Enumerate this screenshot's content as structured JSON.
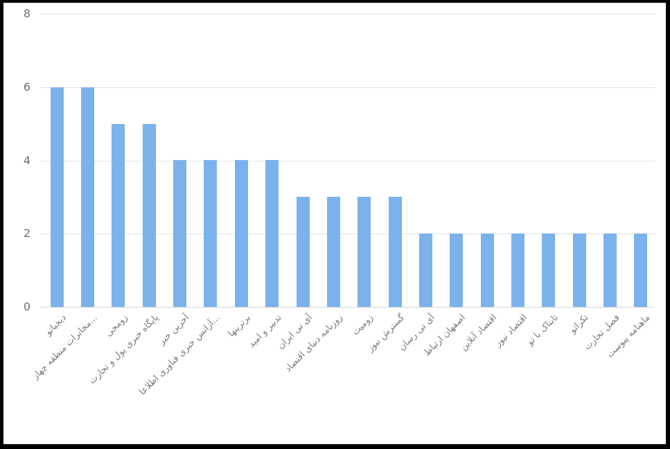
{
  "chart_data": {
    "type": "bar",
    "title": "",
    "xlabel": "",
    "ylabel": "",
    "categories": [
      "دیجیاتو",
      "...مخابرات منطقه چهار",
      "زومجی",
      "پایگاه خبری پول و تجارت",
      "آخرین خبر",
      "...آژانس خبری فناوری اطلاعا",
      "برترینها",
      "تدبیر و امید",
      "آی تی ایران",
      "روزنامه دنیای اقتصاد",
      "زومیت",
      "گسترش نیوز",
      "آی تی رسان",
      "اصفهان ارتباط",
      "اقتصاد آنلاین",
      "اقتصاد نیوز",
      "تابناک با تو",
      "تکراتو",
      "فصل تجارت",
      "ماهنامه پیوست"
    ],
    "values": [
      6,
      6,
      5,
      5,
      4,
      4,
      4,
      4,
      3,
      3,
      3,
      3,
      2,
      2,
      2,
      2,
      2,
      2,
      2,
      2
    ],
    "ylim": [
      0,
      8
    ],
    "yticks": [
      "0",
      "2",
      "4",
      "6",
      "8"
    ],
    "grid": true,
    "legend": false,
    "rtl": true,
    "colors": {
      "bar": "#7cb2eb",
      "gridline": "#e2e2e2",
      "axis_line": "#d6d6d6",
      "y_tick_label": "#6e6e6e",
      "x_tick_label": "#7a7a7a",
      "background": "#ffffff",
      "frame": "#000000"
    }
  }
}
